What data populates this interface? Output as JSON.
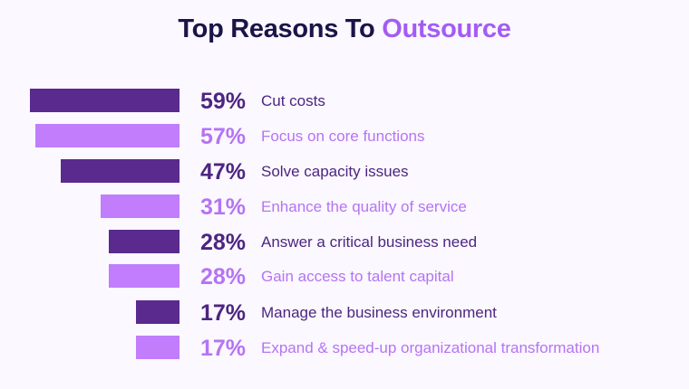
{
  "title": {
    "prefix": "Top Reasons To",
    "highlight": "Outsource"
  },
  "colors": {
    "background": "#fbf8ff",
    "title_text": "#1a1447",
    "title_accent": "#a35cf3",
    "dark_bar": "#5a2a8e",
    "light_bar": "#c17dfb",
    "dark_text": "#4d2581",
    "light_text": "#b574f3"
  },
  "chart_data": {
    "type": "bar",
    "orientation": "horizontal",
    "title": "Top Reasons To Outsource",
    "unit": "%",
    "categories": [
      "Cut costs",
      "Focus on core functions",
      "Solve capacity issues",
      "Enhance the quality of service",
      "Answer a critical business need",
      "Gain access to talent capital",
      "Manage the business environment",
      "Expand & speed-up organizational transformation"
    ],
    "values": [
      59,
      57,
      47,
      31,
      28,
      28,
      17,
      17
    ],
    "value_labels": [
      "59%",
      "57%",
      "47%",
      "31%",
      "28%",
      "28%",
      "17%",
      "17%"
    ],
    "shades": [
      "dark",
      "light",
      "dark",
      "light",
      "dark",
      "light",
      "dark",
      "light"
    ],
    "xlim": [
      0,
      59
    ]
  }
}
